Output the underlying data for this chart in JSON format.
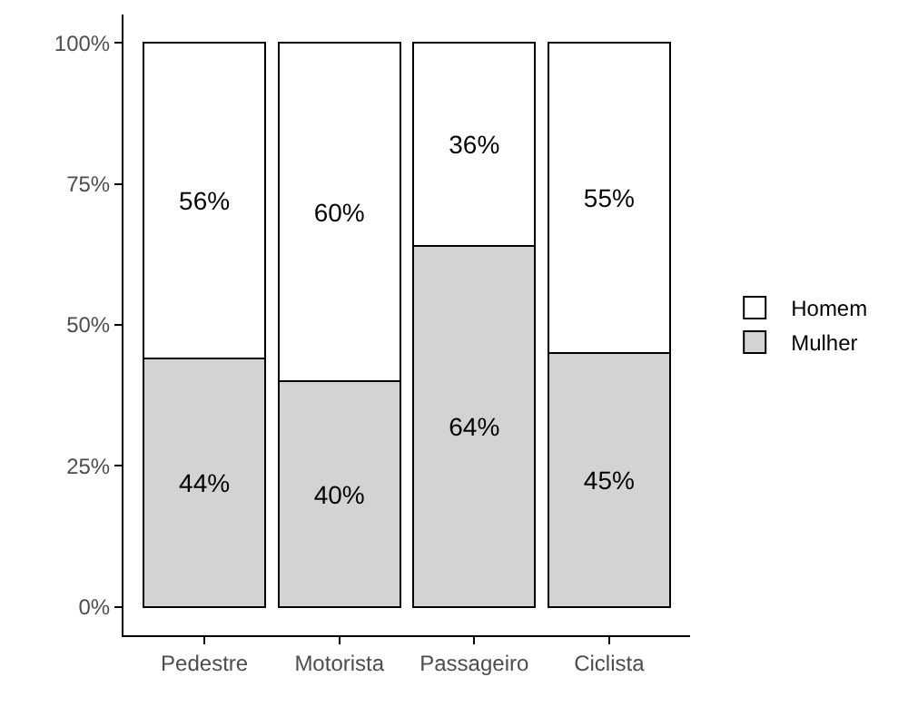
{
  "chart_data": {
    "type": "bar",
    "stacked": true,
    "categories": [
      "Pedestre",
      "Motorista",
      "Passageiro",
      "Ciclista"
    ],
    "series": [
      {
        "name": "Mulher",
        "color": "#d3d3d3",
        "values": [
          44,
          40,
          64,
          45
        ],
        "value_labels": [
          "44%",
          "40%",
          "64%",
          "45%"
        ]
      },
      {
        "name": "Homem",
        "color": "#ffffff",
        "values": [
          56,
          60,
          36,
          55
        ],
        "value_labels": [
          "56%",
          "60%",
          "36%",
          "55%"
        ]
      }
    ],
    "ylim": [
      -5,
      105
    ],
    "yticks": [
      {
        "value": 0,
        "label": "0%"
      },
      {
        "value": 25,
        "label": "25%"
      },
      {
        "value": 50,
        "label": "50%"
      },
      {
        "value": 75,
        "label": "75%"
      },
      {
        "value": 100,
        "label": "100%"
      }
    ],
    "legend": "right"
  }
}
